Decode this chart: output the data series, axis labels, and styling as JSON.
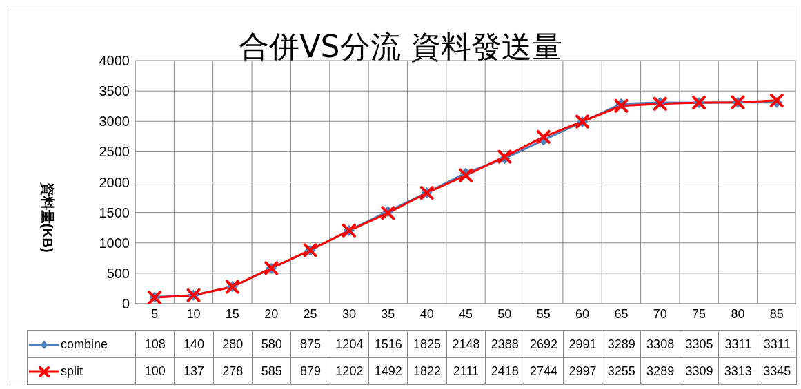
{
  "chart_data": {
    "type": "line",
    "title": "合併VS分流 資料發送量",
    "ylabel": "資料量(KB)",
    "categories": [
      "5",
      "10",
      "15",
      "20",
      "25",
      "30",
      "35",
      "40",
      "45",
      "50",
      "55",
      "60",
      "65",
      "70",
      "75",
      "80",
      "85"
    ],
    "series": [
      {
        "name": "combine",
        "color": "#4f81bd",
        "marker": "diamond",
        "values": [
          108,
          140,
          280,
          580,
          875,
          1204,
          1516,
          1825,
          2148,
          2388,
          2692,
          2991,
          3289,
          3308,
          3305,
          3311,
          3311
        ]
      },
      {
        "name": "split",
        "color": "#ff0000",
        "marker": "cross",
        "values": [
          100,
          137,
          278,
          585,
          879,
          1202,
          1492,
          1822,
          2111,
          2418,
          2744,
          2997,
          3255,
          3289,
          3309,
          3313,
          3345
        ]
      }
    ],
    "ylim": [
      0,
      4000
    ],
    "yticks": [
      0,
      500,
      1000,
      1500,
      2000,
      2500,
      3000,
      3500,
      4000
    ],
    "grid": true,
    "legend": "bottom",
    "data_labels": true
  }
}
